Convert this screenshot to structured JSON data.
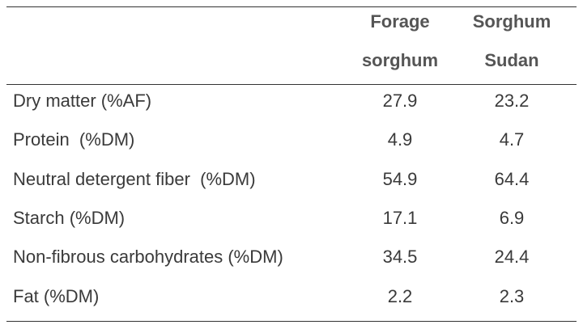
{
  "table": {
    "headers": [
      "Forage sorghum",
      "Sorghum Sudan"
    ],
    "rows": [
      [
        "Dry matter (%AF)",
        "27.9",
        "23.2"
      ],
      [
        "Protein  (%DM)",
        "4.9",
        "4.7"
      ],
      [
        "Neutral detergent fiber  (%DM)",
        "54.9",
        "64.4"
      ],
      [
        "Starch (%DM)",
        "17.1",
        "6.9"
      ],
      [
        "Non-fibrous carbohydrates (%DM)",
        "34.5",
        "24.4"
      ],
      [
        "Fat (%DM)",
        "2.2",
        "2.3"
      ]
    ]
  }
}
